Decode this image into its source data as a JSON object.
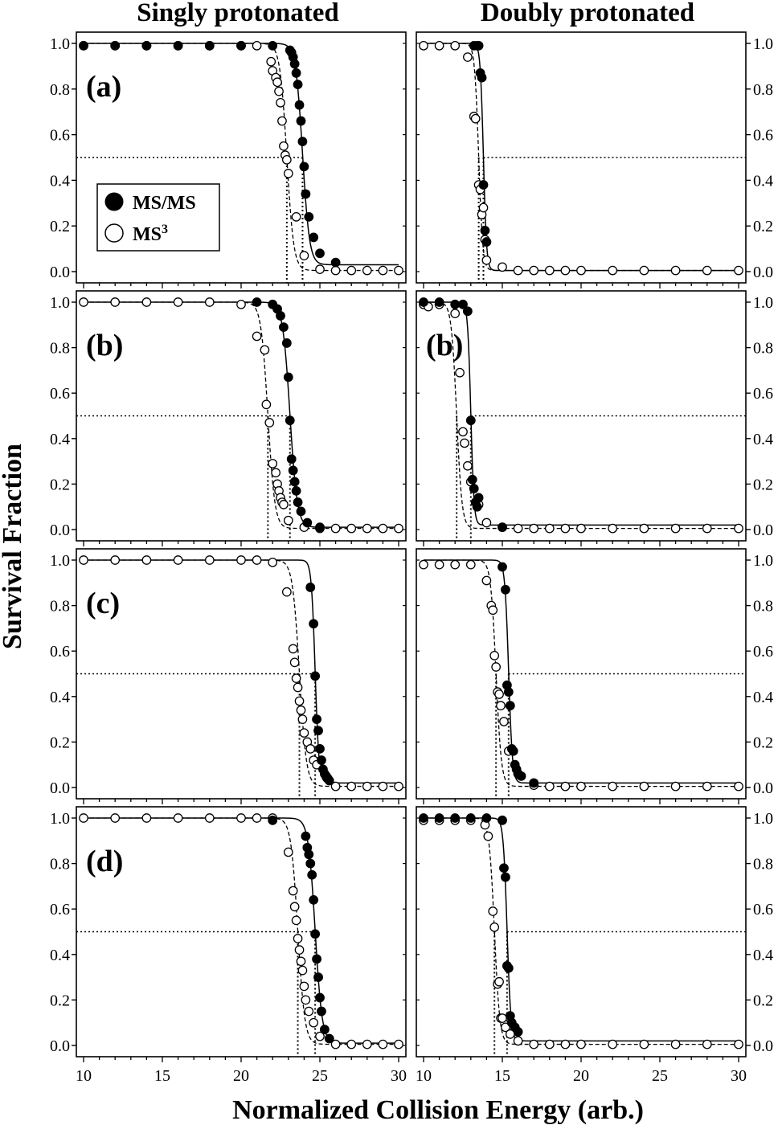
{
  "figure": {
    "column_titles": [
      "Singly protonated",
      "Doubly protonated"
    ],
    "xlabel": "Normalized Collision Energy (arb.)",
    "ylabel": "Survival Fraction",
    "legend": {
      "entries": [
        {
          "label": "MS/MS",
          "marker": "filled-circle"
        },
        {
          "label": "MS",
          "superscript": "3",
          "marker": "open-circle"
        }
      ],
      "placement": "left of panel (a), singly protonated"
    }
  },
  "colors": {
    "ink": "#000000",
    "background": "#ffffff"
  },
  "chart_data": [
    {
      "type": "scatter",
      "panel": "(a)",
      "charge": "Singly protonated",
      "xlim": [
        10,
        30
      ],
      "ylim": [
        0,
        1
      ],
      "xticks": [
        10,
        15,
        20,
        25,
        30
      ],
      "yticks": [
        "0.0",
        "0.2",
        "0.4",
        "0.6",
        "0.8",
        "1.0"
      ],
      "y_axis": "left",
      "panel_label_visible": true,
      "fit": {
        "msms": {
          "x50": 23.9,
          "k": 0.22,
          "base": 0.03
        },
        "ms3": {
          "x50": 22.9,
          "k": 0.22,
          "base": 0.005
        }
      },
      "series": [
        {
          "name": "MS/MS",
          "marker": "filled",
          "x": [
            10,
            12,
            14,
            16,
            18,
            20,
            22,
            23.1,
            23.2,
            23.3,
            23.4,
            23.5,
            23.6,
            23.7,
            23.8,
            23.9,
            24.0,
            24.1,
            24.3,
            24.6,
            25.0,
            26.0
          ],
          "y": [
            0.99,
            0.99,
            0.99,
            0.99,
            0.99,
            0.99,
            0.99,
            0.97,
            0.96,
            0.94,
            0.91,
            0.87,
            0.82,
            0.73,
            0.66,
            0.57,
            0.46,
            0.34,
            0.24,
            0.15,
            0.08,
            0.04
          ]
        },
        {
          "name": "MS3",
          "marker": "open",
          "x": [
            10,
            12,
            14,
            16,
            18,
            20,
            21,
            21.9,
            22.0,
            22.2,
            22.3,
            22.4,
            22.5,
            22.6,
            22.7,
            22.8,
            22.9,
            23.0,
            23.5,
            24.0,
            25.0,
            26.0,
            27.0,
            28.0,
            29.0,
            30.0
          ],
          "y": [
            0.99,
            0.99,
            0.99,
            0.99,
            0.99,
            0.99,
            0.99,
            0.92,
            0.88,
            0.85,
            0.83,
            0.79,
            0.74,
            0.66,
            0.55,
            0.51,
            0.49,
            0.43,
            0.24,
            0.07,
            0.01,
            0.005,
            0.005,
            0.005,
            0.005,
            0.005
          ]
        }
      ]
    },
    {
      "type": "scatter",
      "panel": "(a)",
      "charge": "Doubly protonated",
      "xlim": [
        10,
        30
      ],
      "ylim": [
        0,
        1
      ],
      "xticks": [
        10,
        15,
        20,
        25,
        30
      ],
      "yticks": [
        "0.0",
        "0.2",
        "0.4",
        "0.6",
        "0.8",
        "1.0"
      ],
      "y_axis": "right",
      "panel_label_visible": false,
      "fit": {
        "msms": {
          "x50": 13.8,
          "k": 0.1,
          "base": 0.005
        },
        "ms3": {
          "x50": 13.5,
          "k": 0.13,
          "base": 0.005
        }
      },
      "series": [
        {
          "name": "MS/MS",
          "marker": "filled",
          "x": [
            13.2,
            13.4,
            13.5,
            13.6,
            13.7,
            13.8,
            13.9,
            14.0
          ],
          "y": [
            0.99,
            0.99,
            0.99,
            0.87,
            0.85,
            0.38,
            0.18,
            0.13
          ]
        },
        {
          "name": "MS3",
          "marker": "open",
          "x": [
            10,
            11,
            12,
            12.8,
            13.2,
            13.3,
            13.5,
            13.6,
            13.7,
            13.8,
            13.9,
            14.0,
            15,
            16,
            17,
            18,
            19,
            20,
            22,
            24,
            26,
            28,
            30
          ],
          "y": [
            0.99,
            0.99,
            0.99,
            0.94,
            0.68,
            0.67,
            0.38,
            0.36,
            0.25,
            0.28,
            0.14,
            0.05,
            0.02,
            0.005,
            0.005,
            0.005,
            0.005,
            0.005,
            0.005,
            0.005,
            0.005,
            0.005,
            0.005
          ]
        }
      ]
    },
    {
      "type": "scatter",
      "panel": "(b)",
      "charge": "Singly protonated",
      "xlim": [
        10,
        30
      ],
      "ylim": [
        0,
        1
      ],
      "xticks": [
        10,
        15,
        20,
        25,
        30
      ],
      "yticks": [
        "0.0",
        "0.2",
        "0.4",
        "0.6",
        "0.8",
        "1.0"
      ],
      "y_axis": "left",
      "panel_label_visible": true,
      "fit": {
        "msms": {
          "x50": 23.1,
          "k": 0.23,
          "base": 0.01
        },
        "ms3": {
          "x50": 21.7,
          "k": 0.22,
          "base": 0.005
        }
      },
      "series": [
        {
          "name": "MS/MS",
          "marker": "filled",
          "x": [
            21,
            22,
            22.3,
            22.5,
            22.7,
            22.9,
            23.0,
            23.1,
            23.2,
            23.3,
            23.4,
            23.5,
            23.6,
            23.8,
            24.2,
            25.0
          ],
          "y": [
            1.0,
            0.99,
            0.97,
            0.94,
            0.89,
            0.82,
            0.67,
            0.48,
            0.31,
            0.26,
            0.21,
            0.17,
            0.12,
            0.08,
            0.03,
            0.01
          ]
        },
        {
          "name": "MS3",
          "marker": "open",
          "x": [
            10,
            12,
            14,
            16,
            18,
            20,
            21,
            21.5,
            21.6,
            21.8,
            22.0,
            22.2,
            22.3,
            22.4,
            22.5,
            22.6,
            22.7,
            23.0,
            24,
            25,
            26,
            27,
            28,
            29,
            30
          ],
          "y": [
            1.0,
            1.0,
            1.0,
            1.0,
            1.0,
            0.99,
            0.85,
            0.79,
            0.55,
            0.47,
            0.29,
            0.25,
            0.2,
            0.17,
            0.14,
            0.12,
            0.11,
            0.04,
            0.01,
            0.005,
            0.005,
            0.005,
            0.005,
            0.005,
            0.005
          ]
        }
      ]
    },
    {
      "type": "scatter",
      "panel": "(b)",
      "charge": "Doubly protonated",
      "xlim": [
        10,
        30
      ],
      "ylim": [
        0,
        1
      ],
      "xticks": [
        10,
        15,
        20,
        25,
        30
      ],
      "yticks": [
        "0.0",
        "0.2",
        "0.4",
        "0.6",
        "0.8",
        "1.0"
      ],
      "y_axis": "right",
      "panel_label_visible": true,
      "fit": {
        "msms": {
          "x50": 13.0,
          "k": 0.1,
          "base": 0.02
        },
        "ms3": {
          "x50": 12.1,
          "k": 0.17,
          "base": 0.005
        }
      },
      "series": [
        {
          "name": "MS/MS",
          "marker": "filled",
          "x": [
            10,
            11,
            12,
            12.5,
            12.8,
            13.0,
            13.1,
            13.2,
            13.3,
            13.4,
            13.5,
            15
          ],
          "y": [
            1.0,
            1.0,
            0.99,
            0.99,
            0.96,
            0.48,
            0.22,
            0.18,
            0.12,
            0.1,
            0.14,
            0.01
          ]
        },
        {
          "name": "MS3",
          "marker": "open",
          "x": [
            10,
            10.3,
            11,
            12,
            12.3,
            12.5,
            12.6,
            12.8,
            13.0,
            13.5,
            14,
            15,
            16,
            17,
            18,
            19,
            20,
            22,
            24,
            26,
            28,
            30
          ],
          "y": [
            0.99,
            0.98,
            0.99,
            0.95,
            0.69,
            0.43,
            0.38,
            0.28,
            0.21,
            0.11,
            0.03,
            0.01,
            0.005,
            0.005,
            0.005,
            0.005,
            0.005,
            0.005,
            0.005,
            0.005,
            0.005,
            0.005
          ]
        }
      ]
    },
    {
      "type": "scatter",
      "panel": "(c)",
      "charge": "Singly protonated",
      "xlim": [
        10,
        30
      ],
      "ylim": [
        0,
        1
      ],
      "xticks": [
        10,
        15,
        20,
        25,
        30
      ],
      "yticks": [
        "0.0",
        "0.2",
        "0.4",
        "0.6",
        "0.8",
        "1.0"
      ],
      "y_axis": "left",
      "panel_label_visible": true,
      "fit": {
        "msms": {
          "x50": 24.7,
          "k": 0.12,
          "base": 0.02
        },
        "ms3": {
          "x50": 23.7,
          "k": 0.22,
          "base": 0.005
        }
      },
      "series": [
        {
          "name": "MS/MS",
          "marker": "filled",
          "x": [
            24.4,
            24.6,
            24.7,
            24.8,
            24.9,
            25.0,
            25.1,
            25.2,
            25.3,
            25.4,
            25.5,
            25.6
          ],
          "y": [
            0.88,
            0.72,
            0.49,
            0.3,
            0.25,
            0.17,
            0.12,
            0.08,
            0.06,
            0.05,
            0.04,
            0.03
          ]
        },
        {
          "name": "MS3",
          "marker": "open",
          "x": [
            10,
            12,
            14,
            16,
            18,
            20,
            21,
            22,
            22.9,
            23.3,
            23.4,
            23.5,
            23.6,
            23.7,
            23.8,
            23.9,
            24.0,
            24.2,
            24.4,
            24.6,
            24.8,
            26,
            27,
            28,
            29,
            30
          ],
          "y": [
            1.0,
            1.0,
            1.0,
            1.0,
            1.0,
            1.0,
            1.0,
            0.99,
            0.86,
            0.61,
            0.55,
            0.48,
            0.44,
            0.38,
            0.34,
            0.3,
            0.24,
            0.2,
            0.17,
            0.12,
            0.1,
            0.005,
            0.005,
            0.005,
            0.005,
            0.005
          ]
        }
      ]
    },
    {
      "type": "scatter",
      "panel": "(c)",
      "charge": "Doubly protonated",
      "xlim": [
        10,
        30
      ],
      "ylim": [
        0,
        1
      ],
      "xticks": [
        10,
        15,
        20,
        25,
        30
      ],
      "yticks": [
        "0.0",
        "0.2",
        "0.4",
        "0.6",
        "0.8",
        "1.0"
      ],
      "y_axis": "right",
      "panel_label_visible": false,
      "fit": {
        "msms": {
          "x50": 15.4,
          "k": 0.12,
          "base": 0.02
        },
        "ms3": {
          "x50": 14.6,
          "k": 0.17,
          "base": 0.005
        }
      },
      "series": [
        {
          "name": "MS/MS",
          "marker": "filled",
          "x": [
            15.0,
            15.2,
            15.3,
            15.4,
            15.5,
            15.6,
            15.7,
            15.8,
            15.9,
            16.0,
            16.2,
            17.0
          ],
          "y": [
            0.97,
            0.87,
            0.45,
            0.42,
            0.36,
            0.17,
            0.16,
            0.1,
            0.08,
            0.06,
            0.05,
            0.02
          ]
        },
        {
          "name": "MS3",
          "marker": "open",
          "x": [
            10,
            11,
            12,
            13,
            14,
            14.3,
            14.4,
            14.5,
            14.6,
            14.7,
            14.8,
            14.9,
            15.1,
            15.4,
            16,
            17,
            18,
            19,
            20,
            22,
            24,
            26,
            28,
            30
          ],
          "y": [
            0.98,
            0.98,
            0.98,
            0.98,
            0.91,
            0.8,
            0.78,
            0.58,
            0.53,
            0.42,
            0.41,
            0.36,
            0.29,
            0.16,
            0.06,
            0.01,
            0.005,
            0.005,
            0.005,
            0.005,
            0.005,
            0.005,
            0.005,
            0.005
          ]
        }
      ]
    },
    {
      "type": "scatter",
      "panel": "(d)",
      "charge": "Singly protonated",
      "xlim": [
        10,
        30
      ],
      "ylim": [
        0,
        1
      ],
      "xticks": [
        10,
        15,
        20,
        25,
        30
      ],
      "yticks": [
        "0.0",
        "0.2",
        "0.4",
        "0.6",
        "0.8",
        "1.0"
      ],
      "y_axis": "left",
      "panel_label_visible": true,
      "fit": {
        "msms": {
          "x50": 24.7,
          "k": 0.22,
          "base": 0.01
        },
        "ms3": {
          "x50": 23.6,
          "k": 0.22,
          "base": 0.005
        }
      },
      "series": [
        {
          "name": "MS/MS",
          "marker": "filled",
          "x": [
            22.0,
            24.1,
            24.2,
            24.3,
            24.4,
            24.5,
            24.6,
            24.7,
            24.8,
            24.9,
            25.0,
            25.1,
            25.3,
            25.6
          ],
          "y": [
            0.99,
            0.92,
            0.87,
            0.84,
            0.8,
            0.75,
            0.64,
            0.49,
            0.38,
            0.3,
            0.21,
            0.15,
            0.07,
            0.03
          ]
        },
        {
          "name": "MS3",
          "marker": "open",
          "x": [
            10,
            12,
            14,
            16,
            18,
            20,
            21,
            22,
            23.0,
            23.3,
            23.4,
            23.5,
            23.6,
            23.7,
            23.8,
            23.9,
            24.0,
            24.1,
            24.3,
            24.6,
            25.0,
            26,
            27,
            28,
            29,
            30
          ],
          "y": [
            1.0,
            1.0,
            1.0,
            1.0,
            1.0,
            1.0,
            1.0,
            1.0,
            0.85,
            0.68,
            0.61,
            0.55,
            0.47,
            0.42,
            0.37,
            0.33,
            0.26,
            0.2,
            0.15,
            0.1,
            0.04,
            0.005,
            0.005,
            0.005,
            0.005,
            0.005
          ]
        }
      ]
    },
    {
      "type": "scatter",
      "panel": "(d)",
      "charge": "Doubly protonated",
      "xlim": [
        10,
        30
      ],
      "ylim": [
        0,
        1
      ],
      "xticks": [
        10,
        15,
        20,
        25,
        30
      ],
      "yticks": [
        "0.0",
        "0.2",
        "0.4",
        "0.6",
        "0.8",
        "1.0"
      ],
      "y_axis": "right",
      "panel_label_visible": false,
      "fit": {
        "msms": {
          "x50": 15.3,
          "k": 0.12,
          "base": 0.02
        },
        "ms3": {
          "x50": 14.5,
          "k": 0.17,
          "base": 0.005
        }
      },
      "series": [
        {
          "name": "MS/MS",
          "marker": "filled",
          "x": [
            10,
            11,
            12,
            13,
            14,
            15.0,
            15.1,
            15.2,
            15.3,
            15.4,
            15.5,
            15.6,
            15.8,
            16.0
          ],
          "y": [
            1.0,
            1.0,
            1.0,
            1.0,
            1.0,
            0.99,
            0.78,
            0.74,
            0.35,
            0.34,
            0.13,
            0.1,
            0.08,
            0.06
          ]
        },
        {
          "name": "MS3",
          "marker": "open",
          "x": [
            10,
            11,
            12,
            13,
            13.9,
            14.1,
            14.4,
            14.5,
            14.7,
            14.8,
            14.9,
            15.0,
            15.2,
            15.5,
            16.0,
            17,
            18,
            19,
            20,
            22,
            24,
            26,
            28,
            30
          ],
          "y": [
            0.99,
            0.99,
            0.99,
            0.99,
            0.97,
            0.92,
            0.59,
            0.52,
            0.27,
            0.28,
            0.12,
            0.12,
            0.08,
            0.05,
            0.02,
            0.005,
            0.005,
            0.005,
            0.005,
            0.005,
            0.005,
            0.005,
            0.005,
            0.005
          ]
        }
      ]
    }
  ]
}
